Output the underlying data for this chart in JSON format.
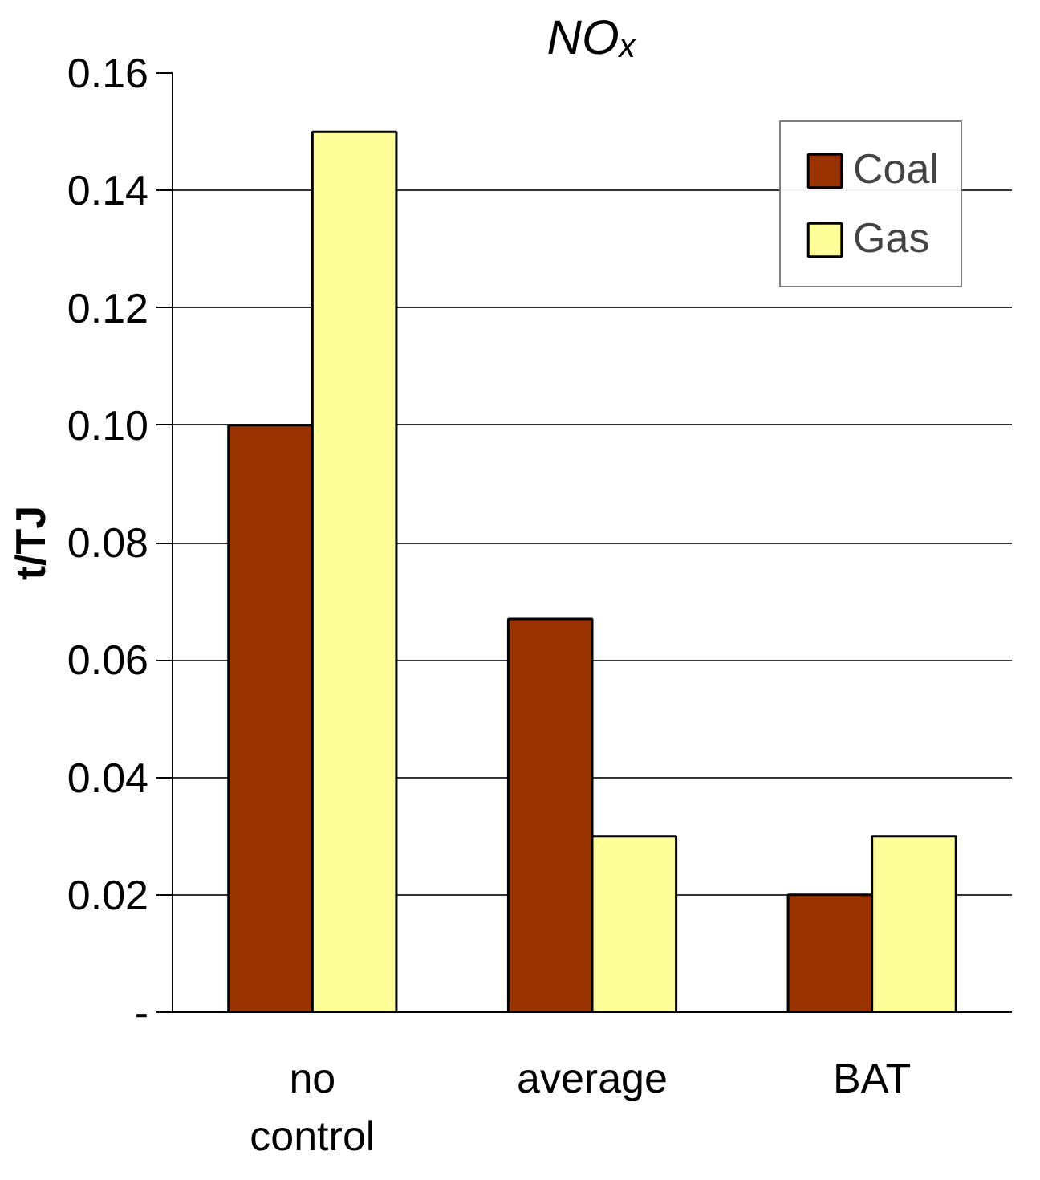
{
  "chart_data": {
    "type": "bar",
    "title": "NOₓ",
    "ylabel": "t/TJ",
    "categories": [
      "no control",
      "average",
      "BAT"
    ],
    "series": [
      {
        "name": "Coal",
        "color": "#993300",
        "values": [
          0.1,
          0.067,
          0.02
        ]
      },
      {
        "name": "Gas",
        "color": "#ffff99",
        "values": [
          0.15,
          0.03,
          0.03
        ]
      }
    ],
    "ylim": [
      0,
      0.16
    ],
    "yticks": [
      {
        "value": 0,
        "label": "-"
      },
      {
        "value": 0.02,
        "label": "0.02"
      },
      {
        "value": 0.04,
        "label": "0.04"
      },
      {
        "value": 0.06,
        "label": "0.06"
      },
      {
        "value": 0.08,
        "label": "0.08"
      },
      {
        "value": 0.1,
        "label": "0.10"
      },
      {
        "value": 0.12,
        "label": "0.12"
      },
      {
        "value": 0.14,
        "label": "0.14"
      },
      {
        "value": 0.16,
        "label": "0.16"
      }
    ],
    "grid": "y",
    "legend": "top right"
  }
}
